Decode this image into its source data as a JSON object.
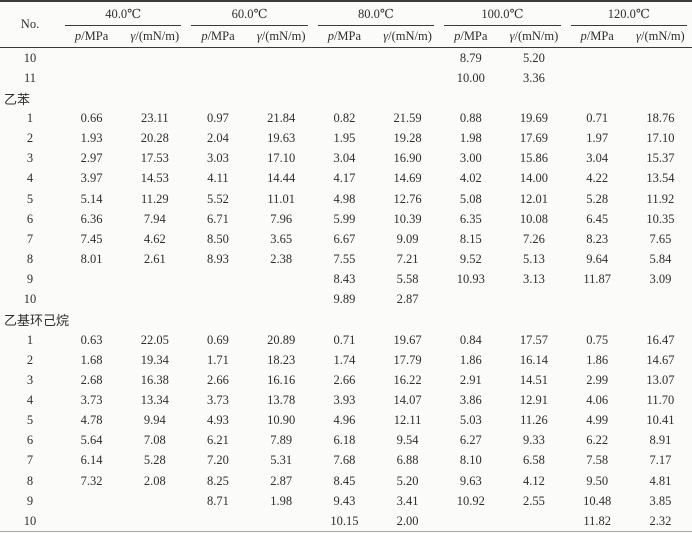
{
  "table": {
    "no_label": "No.",
    "temperatures": [
      "40.0℃",
      "60.0℃",
      "80.0℃",
      "100.0℃",
      "120.0℃"
    ],
    "pressure_symbol": "p",
    "pressure_unit": "/MPa",
    "tension_symbol": "γ",
    "tension_unit": "/(mN/m)",
    "sections": [
      "乙苯",
      "乙基环己烷"
    ],
    "rows": [
      {
        "no": "10",
        "values": [
          "",
          "",
          "",
          "",
          "",
          "",
          "8.79",
          "5.20",
          "",
          ""
        ]
      },
      {
        "no": "11",
        "values": [
          "",
          "",
          "",
          "",
          "",
          "",
          "10.00",
          "3.36",
          "",
          ""
        ]
      },
      {
        "section": "乙苯"
      },
      {
        "no": "1",
        "values": [
          "0.66",
          "23.11",
          "0.97",
          "21.84",
          "0.82",
          "21.59",
          "0.88",
          "19.69",
          "0.71",
          "18.76"
        ]
      },
      {
        "no": "2",
        "values": [
          "1.93",
          "20.28",
          "2.04",
          "19.63",
          "1.95",
          "19.28",
          "1.98",
          "17.69",
          "1.97",
          "17.10"
        ]
      },
      {
        "no": "3",
        "values": [
          "2.97",
          "17.53",
          "3.03",
          "17.10",
          "3.04",
          "16.90",
          "3.00",
          "15.86",
          "3.04",
          "15.37"
        ]
      },
      {
        "no": "4",
        "values": [
          "3.97",
          "14.53",
          "4.11",
          "14.44",
          "4.17",
          "14.69",
          "4.02",
          "14.00",
          "4.22",
          "13.54"
        ]
      },
      {
        "no": "5",
        "values": [
          "5.14",
          "11.29",
          "5.52",
          "11.01",
          "4.98",
          "12.76",
          "5.08",
          "12.01",
          "5.28",
          "11.92"
        ]
      },
      {
        "no": "6",
        "values": [
          "6.36",
          "7.94",
          "6.71",
          "7.96",
          "5.99",
          "10.39",
          "6.35",
          "10.08",
          "6.45",
          "10.35"
        ]
      },
      {
        "no": "7",
        "values": [
          "7.45",
          "4.62",
          "8.50",
          "3.65",
          "6.67",
          "9.09",
          "8.15",
          "7.26",
          "8.23",
          "7.65"
        ]
      },
      {
        "no": "8",
        "values": [
          "8.01",
          "2.61",
          "8.93",
          "2.38",
          "7.55",
          "7.21",
          "9.52",
          "5.13",
          "9.64",
          "5.84"
        ]
      },
      {
        "no": "9",
        "values": [
          "",
          "",
          "",
          "",
          "8.43",
          "5.58",
          "10.93",
          "3.13",
          "11.87",
          "3.09"
        ]
      },
      {
        "no": "10",
        "values": [
          "",
          "",
          "",
          "",
          "9.89",
          "2.87",
          "",
          "",
          "",
          ""
        ]
      },
      {
        "section": "乙基环己烷"
      },
      {
        "no": "1",
        "values": [
          "0.63",
          "22.05",
          "0.69",
          "20.89",
          "0.71",
          "19.67",
          "0.84",
          "17.57",
          "0.75",
          "16.47"
        ]
      },
      {
        "no": "2",
        "values": [
          "1.68",
          "19.34",
          "1.71",
          "18.23",
          "1.74",
          "17.79",
          "1.86",
          "16.14",
          "1.86",
          "14.67"
        ]
      },
      {
        "no": "3",
        "values": [
          "2.68",
          "16.38",
          "2.66",
          "16.16",
          "2.66",
          "16.22",
          "2.91",
          "14.51",
          "2.99",
          "13.07"
        ]
      },
      {
        "no": "4",
        "values": [
          "3.73",
          "13.34",
          "3.73",
          "13.78",
          "3.93",
          "14.07",
          "3.86",
          "12.91",
          "4.06",
          "11.70"
        ]
      },
      {
        "no": "5",
        "values": [
          "4.78",
          "9.94",
          "4.93",
          "10.90",
          "4.96",
          "12.11",
          "5.03",
          "11.26",
          "4.99",
          "10.41"
        ]
      },
      {
        "no": "6",
        "values": [
          "5.64",
          "7.08",
          "6.21",
          "7.89",
          "6.18",
          "9.54",
          "6.27",
          "9.33",
          "6.22",
          "8.91"
        ]
      },
      {
        "no": "7",
        "values": [
          "6.14",
          "5.28",
          "7.20",
          "5.31",
          "7.68",
          "6.88",
          "8.10",
          "6.58",
          "7.58",
          "7.17"
        ]
      },
      {
        "no": "8",
        "values": [
          "7.32",
          "2.08",
          "8.25",
          "2.87",
          "8.45",
          "5.20",
          "9.63",
          "4.12",
          "9.50",
          "4.81"
        ]
      },
      {
        "no": "9",
        "values": [
          "",
          "",
          "8.71",
          "1.98",
          "9.43",
          "3.41",
          "10.92",
          "2.55",
          "10.48",
          "3.85"
        ]
      },
      {
        "no": "10",
        "values": [
          "",
          "",
          "",
          "",
          "10.15",
          "2.00",
          "",
          "",
          "11.82",
          "2.32"
        ]
      }
    ]
  }
}
